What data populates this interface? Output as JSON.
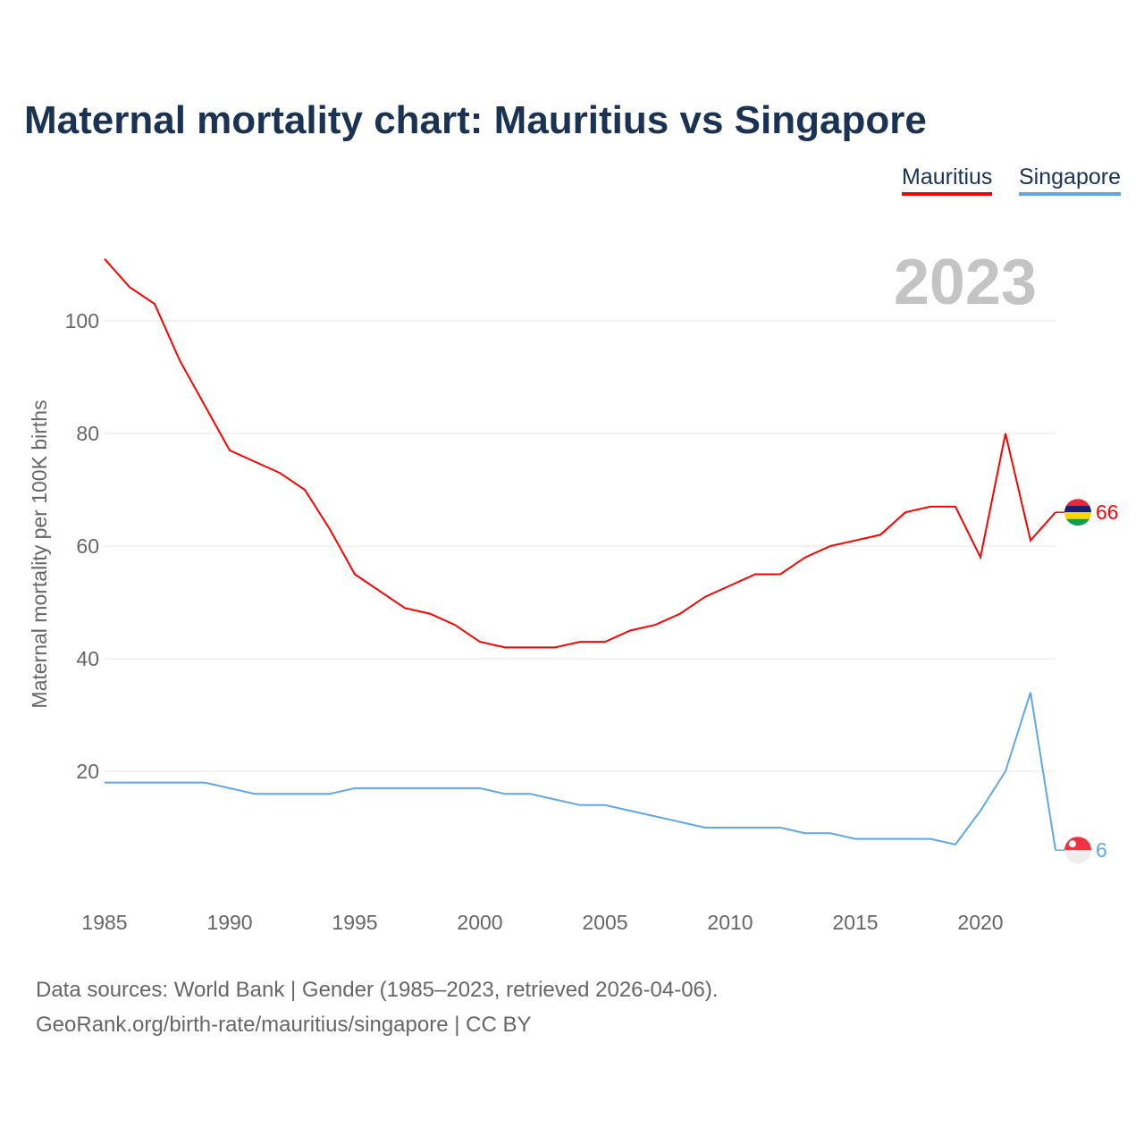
{
  "title": "Maternal mortality chart: Mauritius vs Singapore",
  "legend": [
    "Mauritius",
    "Singapore"
  ],
  "year_label": "2023",
  "source_line1": "Data sources: World Bank | Gender (1985–2023, retrieved 2026-04-06).",
  "source_line2": "GeoRank.org/birth-rate/mauritius/singapore | CC BY",
  "chart_data": {
    "type": "line",
    "title": "Maternal mortality chart: Mauritius vs Singapore",
    "xlabel": "",
    "ylabel": "Maternal mortality per 100K births",
    "x": [
      1985,
      1986,
      1987,
      1988,
      1989,
      1990,
      1991,
      1992,
      1993,
      1994,
      1995,
      1996,
      1997,
      1998,
      1999,
      2000,
      2001,
      2002,
      2003,
      2004,
      2005,
      2006,
      2007,
      2008,
      2009,
      2010,
      2011,
      2012,
      2013,
      2014,
      2015,
      2016,
      2017,
      2018,
      2019,
      2020,
      2021,
      2022,
      2023
    ],
    "xticks": [
      1985,
      1990,
      1995,
      2000,
      2005,
      2010,
      2015,
      2020
    ],
    "yticks": [
      20,
      40,
      60,
      80,
      100
    ],
    "ylim": [
      0,
      113
    ],
    "xlim": [
      1985,
      2023
    ],
    "grid": true,
    "legend_position": "top-right",
    "series": [
      {
        "name": "Mauritius",
        "color": "#ff0000",
        "end_label": "66",
        "values": [
          111,
          106,
          103,
          93,
          85,
          77,
          75,
          73,
          70,
          63,
          55,
          52,
          49,
          48,
          46,
          43,
          42,
          42,
          42,
          43,
          43,
          45,
          46,
          48,
          51,
          53,
          55,
          55,
          58,
          60,
          61,
          62,
          66,
          67,
          67,
          58,
          80,
          61,
          66
        ]
      },
      {
        "name": "Singapore",
        "color": "#5fa8e8",
        "end_label": "6",
        "values": [
          18,
          18,
          18,
          18,
          18,
          17,
          16,
          16,
          16,
          16,
          17,
          17,
          17,
          17,
          17,
          17,
          16,
          16,
          15,
          14,
          14,
          13,
          12,
          11,
          10,
          10,
          10,
          10,
          9,
          9,
          8,
          8,
          8,
          8,
          7,
          13,
          20,
          34,
          6
        ]
      }
    ]
  }
}
